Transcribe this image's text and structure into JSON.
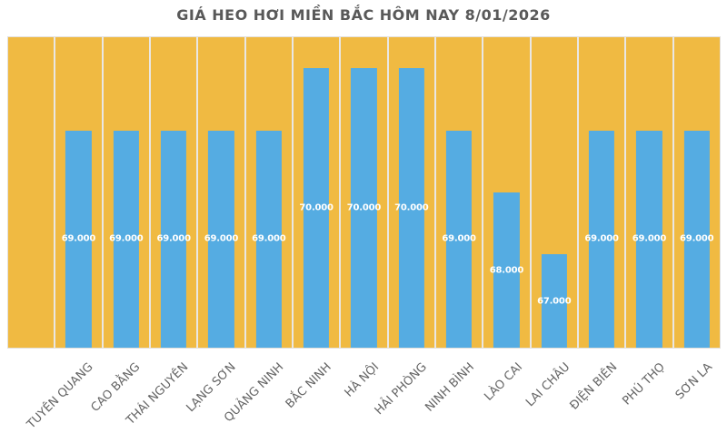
{
  "title": "GIÁ HEO HƠI MIỀN BẮC HÔM NAY 8/01/2026",
  "chart_data": {
    "type": "bar",
    "title": "GIÁ HEO HƠI MIỀN BẮC HÔM NAY 8/01/2026",
    "categories": [
      "TUYÊN QUANG",
      "CAO BẰNG",
      "THÁI NGUYÊN",
      "LẠNG SƠN",
      "QUẢNG NINH",
      "BẮC NINH",
      "HÀ NỘI",
      "HẢI PHÒNG",
      "NINH BÌNH",
      "LÀO CAI",
      "LAI CHÂU",
      "ĐIỆN BIÊN",
      "PHÚ THỌ",
      "SƠN LA"
    ],
    "values": [
      69000,
      69000,
      69000,
      69000,
      69000,
      70000,
      70000,
      70000,
      69000,
      68000,
      67000,
      69000,
      69000,
      69000
    ],
    "value_labels": [
      "69.000",
      "69.000",
      "69.000",
      "69.000",
      "69.000",
      "70.000",
      "70.000",
      "70.000",
      "69.000",
      "68.000",
      "67.000",
      "69.000",
      "69.000",
      "69.000"
    ],
    "xlabel": "",
    "ylabel": "",
    "ylim": [
      65500,
      70500
    ],
    "leading_empty_columns": 1,
    "legend": "none",
    "grid": "vertical category separators only",
    "y_axis_ticks_visible": false,
    "x_label_rotation_deg": -45
  },
  "colors": {
    "background": "#FFFFFF",
    "title": "#595959",
    "plot_bg": "#F0BA42",
    "bar": "#55ACE2",
    "bar_label": "#FFFFFF",
    "separator": "#E9E7E4",
    "plot_border": "#E3E1DE",
    "category_label": "#646464"
  }
}
